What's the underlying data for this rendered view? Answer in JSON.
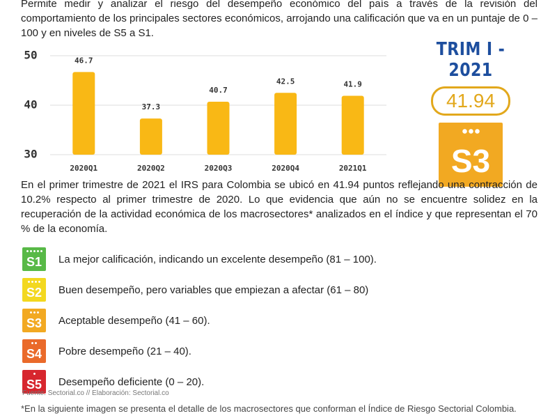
{
  "intro": "Permite medir y analizar el riesgo del desempeño económico del país a través de la revisión del comportamiento de los principales sectores económicos, arrojando una calificación que va en un puntaje de 0 – 100 y en niveles de S5 a S1.",
  "chart_data": {
    "type": "bar",
    "categories": [
      "2020Q1",
      "2020Q2",
      "2020Q3",
      "2020Q4",
      "2021Q1"
    ],
    "values": [
      46.7,
      37.3,
      40.7,
      42.5,
      41.9
    ],
    "color": "#f9b815",
    "ylim": [
      30,
      50
    ],
    "yticks": [
      30,
      40,
      50
    ],
    "grid": true
  },
  "score_panel": {
    "period": "TRIM I - 2021",
    "score": "41.94",
    "level": "S3",
    "color": "#f2a922"
  },
  "summary": "En el primer trimestre de 2021 el IRS para Colombia se ubicó en 41.94 puntos reflejando una contracción de 10.2% respecto al primer trimestre de 2020. Lo que evidencia que aún no se encuentre solidez en la recuperación de la actividad económica de los macrosectores* analizados en el índice y que representan el 70 % de la economía.",
  "levels": [
    {
      "code": "S1",
      "description": "La mejor calificación, indicando un excelente desempeño (81 – 100).",
      "color": "#58b947"
    },
    {
      "code": "S2",
      "description": "Buen desempeño, pero variables que empiezan a afectar (61 – 80)",
      "color": "#f3d81f"
    },
    {
      "code": "S3",
      "description": "Aceptable desempeño (41 – 60).",
      "color": "#f2a922"
    },
    {
      "code": "S4",
      "description": "Pobre desempeño (21 – 40).",
      "color": "#ea6a2a"
    },
    {
      "code": "S5",
      "description": "Desempeño deficiente (0 – 20).",
      "color": "#d7262e"
    }
  ],
  "source": "Fuente: Sectorial.co // Elaboración: Sectorial.co",
  "footnote": "*En la siguiente imagen se presenta el detalle de los macrosectores que conforman el Índice de Riesgo Sectorial Colombia."
}
